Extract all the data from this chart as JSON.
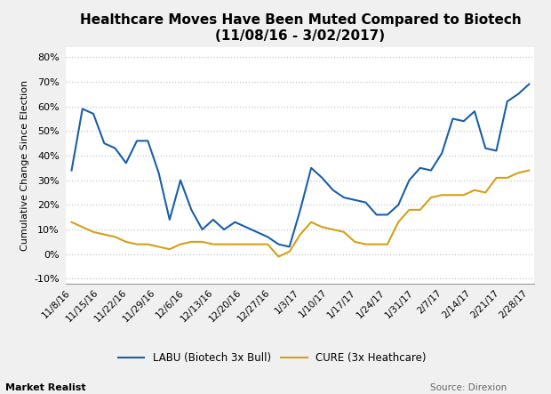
{
  "title": "Healthcare Moves Have Been Muted Compared to Biotech\n(11/08/16 - 3/02/2017)",
  "ylabel": "Cumulative Change Since Election",
  "background_color": "#f0f0f0",
  "plot_bg_color": "#ffffff",
  "grid_color": "#c8c8c8",
  "ylim": [
    -0.12,
    0.84
  ],
  "yticks": [
    -0.1,
    0.0,
    0.1,
    0.2,
    0.3,
    0.4,
    0.5,
    0.6,
    0.7,
    0.8
  ],
  "xlabel_dates": [
    "11/8/16",
    "11/15/16",
    "11/22/16",
    "11/29/16",
    "12/6/16",
    "12/13/16",
    "12/20/16",
    "12/27/16",
    "1/3/17",
    "1/10/17",
    "1/17/17",
    "1/24/17",
    "1/31/17",
    "2/7/17",
    "2/14/17",
    "2/21/17",
    "2/28/17"
  ],
  "labu_color": "#1a5fa8",
  "cure_color": "#d4a017",
  "source_text": "Source: Direxion",
  "watermark_text": "Market Realist",
  "legend_labu": "LABU (Biotech 3x Bull)",
  "legend_cure": "CURE (3x Heathcare)",
  "labu_values": [
    0.34,
    0.59,
    0.57,
    0.45,
    0.43,
    0.37,
    0.46,
    0.46,
    0.33,
    0.14,
    0.3,
    0.18,
    0.1,
    0.14,
    0.1,
    0.13,
    0.11,
    0.09,
    0.07,
    0.04,
    0.03,
    0.18,
    0.35,
    0.31,
    0.26,
    0.23,
    0.22,
    0.21,
    0.16,
    0.16,
    0.2,
    0.3,
    0.35,
    0.34,
    0.41,
    0.55,
    0.54,
    0.58,
    0.43,
    0.42,
    0.62,
    0.65,
    0.69
  ],
  "cure_values": [
    0.13,
    0.11,
    0.09,
    0.08,
    0.07,
    0.05,
    0.04,
    0.04,
    0.03,
    0.02,
    0.04,
    0.05,
    0.05,
    0.04,
    0.04,
    0.04,
    0.04,
    0.04,
    0.04,
    -0.01,
    0.01,
    0.08,
    0.13,
    0.11,
    0.1,
    0.09,
    0.05,
    0.04,
    0.04,
    0.04,
    0.13,
    0.18,
    0.18,
    0.23,
    0.24,
    0.24,
    0.24,
    0.26,
    0.25,
    0.31,
    0.31,
    0.33,
    0.34
  ]
}
